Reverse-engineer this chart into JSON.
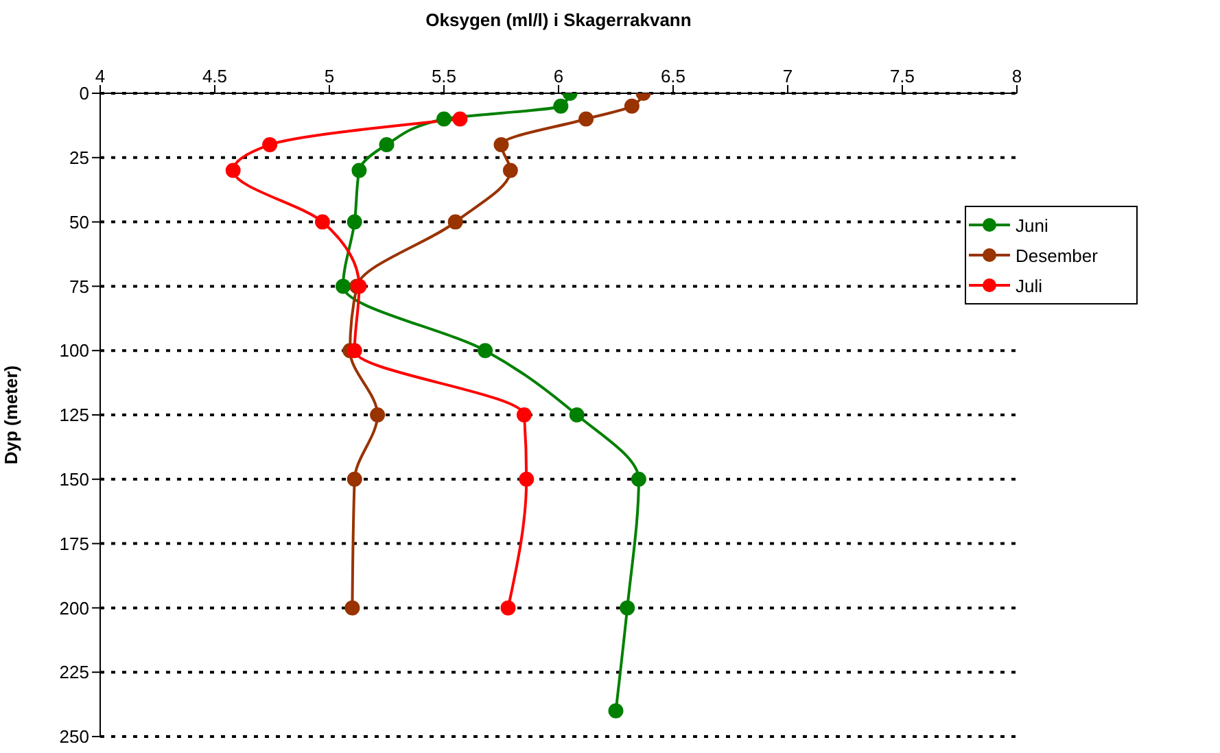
{
  "chart_data": {
    "type": "line",
    "xlabel": "Oksygen (ml/l) i Skagerrakvann",
    "ylabel": "Dyp (meter)",
    "xlim": [
      4,
      8
    ],
    "xticks": [
      4,
      4.5,
      5,
      5.5,
      6,
      6.5,
      7,
      7.5,
      8
    ],
    "ylim": [
      250,
      0
    ],
    "yticks": [
      0,
      25,
      50,
      75,
      100,
      125,
      150,
      175,
      200,
      225,
      250
    ],
    "grid": "y",
    "legend": "right",
    "marker": "circle",
    "line_style": "solid",
    "series": [
      {
        "name": "Juni",
        "color": "#008000",
        "x": [
          6.05,
          6.01,
          5.5,
          5.25,
          5.13,
          5.11,
          5.06,
          5.68,
          6.08,
          6.35,
          6.3,
          6.25
        ],
        "values": [
          0,
          5,
          10,
          20,
          30,
          50,
          75,
          100,
          125,
          150,
          200,
          240
        ]
      },
      {
        "name": "Desember",
        "color": "#993300",
        "x": [
          6.37,
          6.32,
          6.12,
          5.75,
          5.79,
          5.55,
          5.12,
          5.09,
          5.21,
          5.11,
          5.1
        ],
        "values": [
          0,
          5,
          10,
          20,
          30,
          50,
          75,
          100,
          125,
          150,
          200
        ]
      },
      {
        "name": "Juli",
        "color": "#ff0000",
        "x": [
          5.57,
          4.74,
          4.58,
          4.97,
          5.13,
          5.11,
          5.85,
          5.86,
          5.78
        ],
        "values": [
          10,
          20,
          30,
          50,
          75,
          100,
          125,
          150,
          200
        ]
      }
    ]
  }
}
